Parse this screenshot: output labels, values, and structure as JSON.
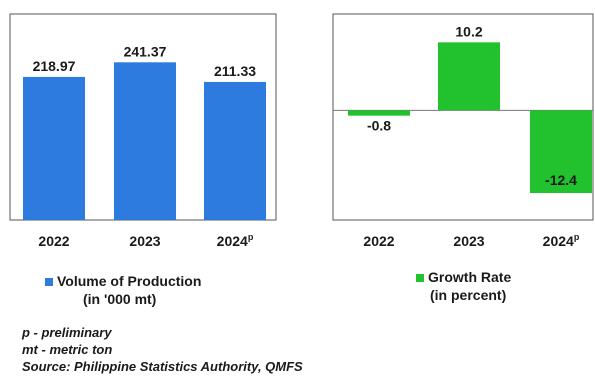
{
  "chart_data": [
    {
      "type": "bar",
      "categories": [
        "2022",
        "2023",
        "2024"
      ],
      "category_superscripts": [
        "",
        "",
        "p"
      ],
      "values": [
        218.97,
        241.37,
        211.33
      ],
      "value_labels": [
        "218.97",
        "241.37",
        "211.33"
      ],
      "series": [
        {
          "name": "Volume of Production",
          "values": [
            218.97,
            241.37,
            211.33
          ]
        }
      ],
      "legend_label": "Volume of Production",
      "legend_sublabel": "(in '000 mt)",
      "color": "#2e7be0",
      "ylim": [
        0,
        300
      ],
      "grid": false,
      "legend_position": "bottom"
    },
    {
      "type": "bar",
      "categories": [
        "2022",
        "2023",
        "2024"
      ],
      "category_superscripts": [
        "",
        "",
        "p"
      ],
      "values": [
        -0.8,
        10.2,
        -12.4
      ],
      "value_labels": [
        "-0.8",
        "10.2",
        "-12.4"
      ],
      "series": [
        {
          "name": "Growth Rate",
          "values": [
            -0.8,
            10.2,
            -12.4
          ]
        }
      ],
      "legend_label": "Growth Rate",
      "legend_sublabel": "(in percent)",
      "color": "#22c12e",
      "ylim": [
        -16,
        14
      ],
      "grid": false,
      "legend_position": "bottom"
    }
  ],
  "notes": {
    "preliminary": "p - preliminary",
    "metric_ton": "mt - metric  ton",
    "source": "Source: Philippine  Statistics Authority, QMFS"
  }
}
